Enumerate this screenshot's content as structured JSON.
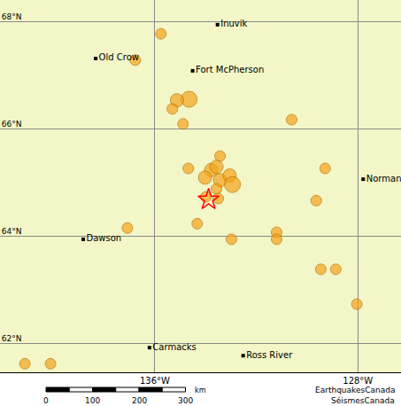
{
  "chart_data": {
    "type": "map",
    "xlim": [
      -142.1,
      -126.3
    ],
    "ylim": [
      61.47,
      68.41
    ],
    "xticks": [
      {
        "value": -136,
        "label": "136°W"
      },
      {
        "value": -128,
        "label": "128°W"
      }
    ],
    "yticks": [
      {
        "value": 62,
        "label": "62°N"
      },
      {
        "value": 64,
        "label": "64°N"
      },
      {
        "value": 66,
        "label": "66°N"
      },
      {
        "value": 68,
        "label": "68°N"
      }
    ],
    "grid": true,
    "places": [
      {
        "name": "Inuvik",
        "lon": -133.53,
        "lat": 67.95
      },
      {
        "name": "Old Crow",
        "lon": -138.33,
        "lat": 67.32
      },
      {
        "name": "Fort McPherson",
        "lon": -134.51,
        "lat": 67.09
      },
      {
        "name": "Norman",
        "lon": -127.79,
        "lat": 65.07
      },
      {
        "name": "Dawson",
        "lon": -138.82,
        "lat": 63.95
      },
      {
        "name": "Carmacks",
        "lon": -136.21,
        "lat": 61.93
      },
      {
        "name": "Ross River",
        "lon": -132.52,
        "lat": 61.78
      }
    ],
    "events": {
      "color": "#f5a41c",
      "lon": [
        -135.76,
        -136.77,
        -134.65,
        -135.13,
        -135.31,
        -134.89,
        -130.61,
        -129.29,
        -129.64,
        -133.43,
        -134.68,
        -133.78,
        -133.57,
        -134.02,
        -133.43,
        -133.05,
        -132.94,
        -133.57,
        -133.5,
        -133.99,
        -137.08,
        -134.33,
        -132.98,
        -131.2,
        -131.2,
        -129.46,
        -128.87,
        -128.04,
        -141.12,
        -140.11
      ],
      "lat": [
        67.78,
        67.29,
        66.56,
        66.54,
        66.38,
        66.1,
        66.18,
        65.27,
        64.67,
        65.5,
        65.27,
        65.24,
        65.3,
        65.1,
        65.05,
        65.14,
        64.97,
        64.89,
        64.71,
        64.74,
        64.16,
        64.24,
        63.95,
        64.08,
        63.95,
        63.39,
        63.39,
        62.74,
        61.63,
        61.63
      ],
      "magnitude": [
        4,
        4,
        5,
        4.5,
        4,
        4,
        4,
        4,
        4,
        4,
        4,
        4.5,
        4.5,
        4.5,
        4.5,
        4.5,
        5,
        4,
        4,
        4,
        4,
        4,
        4,
        4,
        4,
        4,
        4,
        4,
        4,
        4
      ]
    },
    "epicentre": {
      "lon": -133.88,
      "lat": 64.69,
      "color": "#ff0000",
      "marker": "star-open"
    },
    "scale_bar": {
      "label": "km",
      "ticks": [
        0,
        100,
        200,
        300
      ]
    },
    "credits": [
      "EarthquakesCanada",
      "SéismesCanada"
    ]
  }
}
